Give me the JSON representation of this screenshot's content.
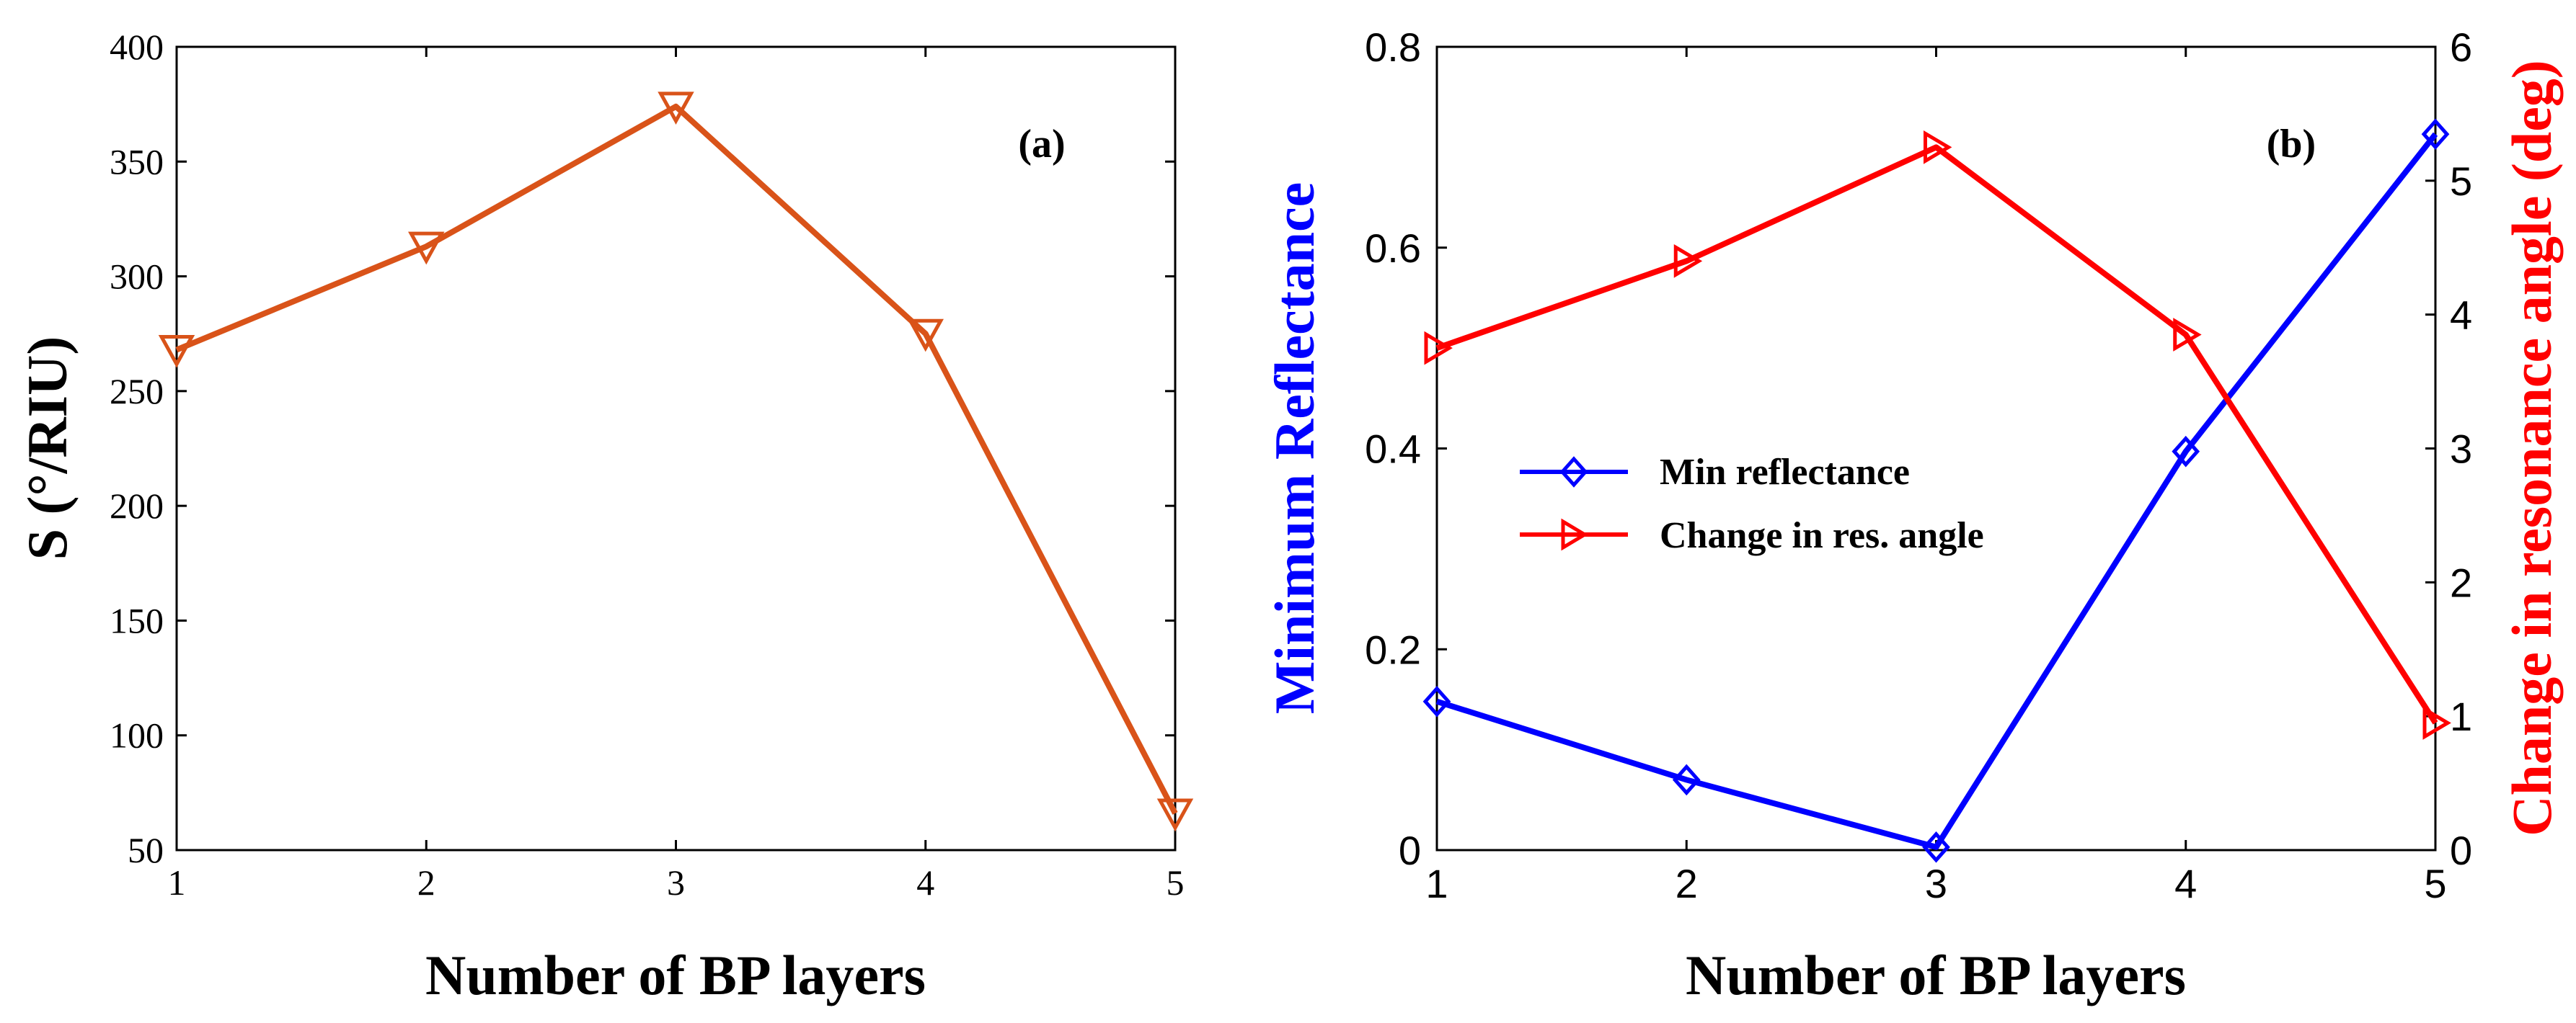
{
  "chart_data": [
    {
      "type": "line",
      "panel_label": "(a)",
      "xlabel": "Number of BP layers",
      "ylabel": "S  (°/RIU)",
      "xlim": [
        1,
        5
      ],
      "ylim": [
        50,
        400
      ],
      "xticks": [
        1,
        2,
        3,
        4,
        5
      ],
      "yticks": [
        50,
        100,
        150,
        200,
        250,
        300,
        350,
        400
      ],
      "grid": false,
      "series": [
        {
          "name": "S",
          "color": "#d95319",
          "marker": "triangle-down",
          "x": [
            1,
            2,
            3,
            4,
            5
          ],
          "values": [
            268,
            313,
            374,
            275,
            66
          ]
        }
      ]
    },
    {
      "type": "line",
      "panel_label": "(b)",
      "xlabel": "Number of BP layers",
      "ylabel_left": "Minimum Reflectance",
      "ylabel_right": "Change in resonance angle (deg)",
      "xlim": [
        1,
        5
      ],
      "ylim_left": [
        0,
        0.8
      ],
      "ylim_right": [
        0,
        6
      ],
      "xticks": [
        1,
        2,
        3,
        4,
        5
      ],
      "yticks_left": [
        "0",
        "0.2",
        "0.4",
        "0.6",
        "0.8"
      ],
      "yticks_right": [
        0,
        1,
        2,
        3,
        4,
        5,
        6
      ],
      "grid": false,
      "legend_position": "center-left",
      "series": [
        {
          "name": "Min reflectance",
          "axis": "left",
          "color": "#0000ff",
          "marker": "diamond",
          "x": [
            1,
            2,
            3,
            4,
            5
          ],
          "values": [
            0.148,
            0.07,
            0.003,
            0.397,
            0.713
          ]
        },
        {
          "name": "Change in res. angle",
          "axis": "right",
          "color": "#ff0000",
          "marker": "triangle-right",
          "x": [
            1,
            2,
            3,
            4,
            5
          ],
          "values": [
            3.75,
            4.4,
            5.25,
            3.85,
            0.95
          ]
        }
      ]
    }
  ]
}
